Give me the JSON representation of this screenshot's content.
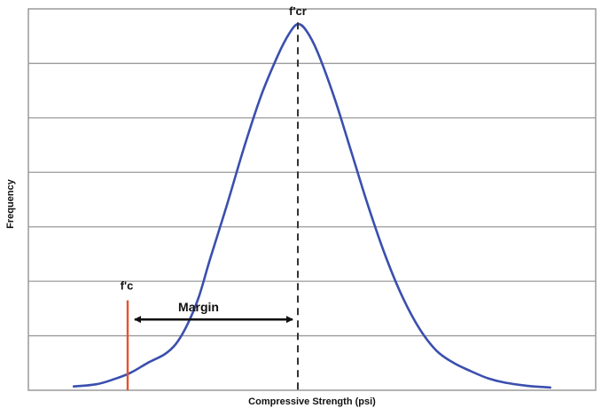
{
  "chart_data": {
    "type": "line",
    "title": "",
    "xlabel": "Compressive Strength (psi)",
    "ylabel": "Frequency",
    "grid": true,
    "xlim": [
      0,
      100
    ],
    "ylim": [
      0,
      7
    ],
    "series": [
      {
        "color": "#3a4fae",
        "points": [
          [
            8,
            0.07
          ],
          [
            12,
            0.11
          ],
          [
            15,
            0.2
          ],
          [
            18,
            0.32
          ],
          [
            21,
            0.5
          ],
          [
            24,
            0.66
          ],
          [
            26,
            0.85
          ],
          [
            28,
            1.2
          ],
          [
            30,
            1.7
          ],
          [
            32,
            2.4
          ],
          [
            35,
            3.4
          ],
          [
            38,
            4.45
          ],
          [
            41,
            5.4
          ],
          [
            44,
            6.15
          ],
          [
            46,
            6.55
          ],
          [
            47.5,
            6.72
          ],
          [
            49,
            6.6
          ],
          [
            51,
            6.2
          ],
          [
            54,
            5.35
          ],
          [
            57,
            4.35
          ],
          [
            60,
            3.35
          ],
          [
            63,
            2.45
          ],
          [
            66,
            1.7
          ],
          [
            69,
            1.12
          ],
          [
            72,
            0.72
          ],
          [
            75,
            0.5
          ],
          [
            78,
            0.35
          ],
          [
            81,
            0.22
          ],
          [
            84,
            0.14
          ],
          [
            88,
            0.08
          ],
          [
            92,
            0.05
          ]
        ]
      }
    ],
    "annotations": {
      "fcr": {
        "label": "f'cr",
        "x": 47.5,
        "style": "dashed",
        "color": "#333333"
      },
      "fc": {
        "label": "f'c",
        "x": 17.5,
        "y_top": 1.65,
        "color": "#e8502a"
      },
      "margin": {
        "label": "Margin",
        "from_x": 17.5,
        "to_x": 47.5,
        "y": 1.3
      }
    }
  }
}
